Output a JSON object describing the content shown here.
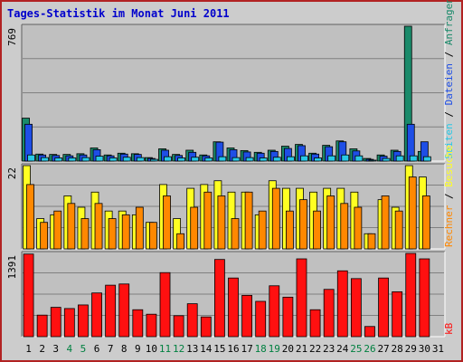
{
  "title": "Tages-Statistik im Monat Juni 2011",
  "colors": {
    "frame": "#b22222",
    "background": "#cccccc",
    "plot": "#c0c0c0",
    "grid": "#808080",
    "anfragen": "#1a8a6a",
    "dateien": "#1e4ee6",
    "seiten": "#28c8e6",
    "besuche": "#ffff22",
    "rechner": "#ff8800",
    "kb": "#ff1010",
    "weekend_label": "#008040",
    "weekday_label": "#000000"
  },
  "chart_data": [
    {
      "type": "bar",
      "panel": "top",
      "ymax_label": "769",
      "ylim": [
        0,
        769
      ],
      "grid": true,
      "legend_placement": "right-vertical",
      "legend": [
        "Seiten",
        "Dateien",
        "Anfragen"
      ],
      "categories": [
        1,
        2,
        3,
        4,
        5,
        6,
        7,
        8,
        9,
        10,
        11,
        12,
        13,
        14,
        15,
        16,
        17,
        18,
        19,
        20,
        21,
        22,
        23,
        24,
        25,
        26,
        27,
        28,
        29,
        30,
        31
      ],
      "series": [
        {
          "name": "Anfragen",
          "values": [
            245,
            40,
            38,
            38,
            42,
            75,
            35,
            45,
            42,
            20,
            70,
            38,
            62,
            35,
            110,
            75,
            60,
            50,
            62,
            85,
            95,
            45,
            90,
            115,
            70,
            15,
            35,
            62,
            769,
            55,
            0
          ]
        },
        {
          "name": "Dateien",
          "values": [
            210,
            35,
            32,
            30,
            35,
            65,
            30,
            40,
            38,
            15,
            62,
            32,
            50,
            30,
            108,
            65,
            52,
            45,
            55,
            72,
            88,
            40,
            82,
            110,
            58,
            10,
            28,
            55,
            210,
            110,
            0
          ]
        },
        {
          "name": "Seiten",
          "values": [
            35,
            20,
            18,
            18,
            20,
            28,
            18,
            22,
            20,
            10,
            25,
            18,
            22,
            18,
            25,
            20,
            20,
            18,
            22,
            25,
            30,
            18,
            30,
            35,
            30,
            5,
            15,
            30,
            30,
            25,
            0
          ]
        }
      ]
    },
    {
      "type": "bar",
      "panel": "middle",
      "ymax_label": "22",
      "ylim": [
        0,
        22
      ],
      "grid": true,
      "legend_placement": "right-vertical",
      "legend": [
        "Rechner",
        "Besuche"
      ],
      "categories": [
        1,
        2,
        3,
        4,
        5,
        6,
        7,
        8,
        9,
        10,
        11,
        12,
        13,
        14,
        15,
        16,
        17,
        18,
        19,
        20,
        21,
        22,
        23,
        24,
        25,
        26,
        27,
        28,
        29,
        30,
        31
      ],
      "series": [
        {
          "name": "Besuche",
          "values": [
            22,
            8,
            9,
            14,
            11,
            15,
            10,
            10,
            9,
            7,
            17,
            8,
            16,
            17,
            18,
            15,
            15,
            9,
            18,
            16,
            16,
            15,
            16,
            16,
            15,
            4,
            13,
            11,
            22,
            19,
            0
          ]
        },
        {
          "name": "Rechner",
          "values": [
            17,
            7,
            10,
            12,
            8,
            12,
            8,
            9,
            11,
            7,
            14,
            4,
            11,
            15,
            14,
            8,
            15,
            10,
            16,
            10,
            13,
            10,
            14,
            12,
            11,
            4,
            14,
            10,
            19,
            14,
            0
          ]
        }
      ]
    },
    {
      "type": "bar",
      "panel": "bottom",
      "ymax_label": "1391",
      "ylim": [
        0,
        1391
      ],
      "grid": true,
      "legend_placement": "right-vertical",
      "legend": [
        "kB"
      ],
      "categories": [
        1,
        2,
        3,
        4,
        5,
        6,
        7,
        8,
        9,
        10,
        11,
        12,
        13,
        14,
        15,
        16,
        17,
        18,
        19,
        20,
        21,
        22,
        23,
        24,
        25,
        26,
        27,
        28,
        29,
        30,
        31
      ],
      "series": [
        {
          "name": "kB",
          "values": [
            1380,
            360,
            490,
            470,
            530,
            730,
            860,
            880,
            450,
            375,
            1070,
            350,
            550,
            330,
            1290,
            980,
            690,
            590,
            850,
            660,
            1300,
            450,
            790,
            1100,
            970,
            170,
            980,
            750,
            1391,
            1300,
            0
          ]
        }
      ]
    }
  ],
  "x_labels": [
    "1",
    "2",
    "3",
    "4",
    "5",
    "6",
    "7",
    "8",
    "9",
    "10",
    "11",
    "12",
    "13",
    "14",
    "15",
    "16",
    "17",
    "18",
    "19",
    "20",
    "21",
    "22",
    "23",
    "24",
    "25",
    "26",
    "27",
    "28",
    "29",
    "30",
    "31"
  ],
  "weekend_days": [
    4,
    5,
    11,
    12,
    18,
    19,
    25,
    26
  ],
  "legends": {
    "top": [
      {
        "text": "Seiten",
        "color": "#28c8e6"
      },
      {
        "text": " / ",
        "color": "#000000"
      },
      {
        "text": "Dateien",
        "color": "#1e4ee6"
      },
      {
        "text": " / ",
        "color": "#000000"
      },
      {
        "text": "Anfragen",
        "color": "#1a8a6a"
      }
    ],
    "middle": [
      {
        "text": "Rechner",
        "color": "#ff8800"
      },
      {
        "text": " / ",
        "color": "#000000"
      },
      {
        "text": "Besuche",
        "color": "#ffff22"
      }
    ],
    "bottom": [
      {
        "text": "kB",
        "color": "#ff1010"
      }
    ]
  }
}
